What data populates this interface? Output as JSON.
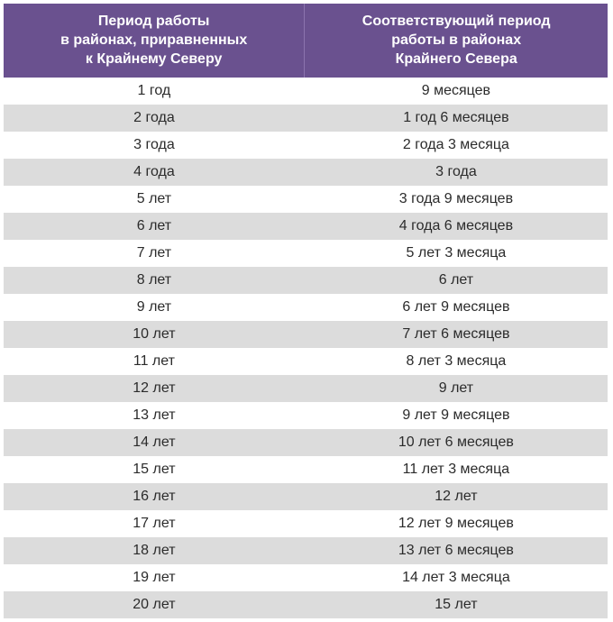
{
  "table": {
    "type": "table",
    "header_bg": "#6a518f",
    "header_text_color": "#ffffff",
    "header_fontsize": 16,
    "header_fontweight": "bold",
    "row_even_bg": "#dcdcdc",
    "row_odd_bg": "#ffffff",
    "cell_text_color": "#2b2b2b",
    "cell_fontsize": 16,
    "columns": [
      "Период работы\nв районах, приравненных\nк Крайнему Северу",
      "Соответствующий период\nработы в районах\nКрайнего Севера"
    ],
    "rows": [
      [
        "1 год",
        "9 месяцев"
      ],
      [
        "2 года",
        "1 год 6 месяцев"
      ],
      [
        "3 года",
        "2 года 3 месяца"
      ],
      [
        "4 года",
        "3 года"
      ],
      [
        "5 лет",
        "3 года 9 месяцев"
      ],
      [
        "6 лет",
        "4 года 6 месяцев"
      ],
      [
        "7 лет",
        "5 лет 3 месяца"
      ],
      [
        "8 лет",
        "6 лет"
      ],
      [
        "9 лет",
        "6 лет 9 месяцев"
      ],
      [
        "10 лет",
        "7 лет 6 месяцев"
      ],
      [
        "11 лет",
        "8 лет 3 месяца"
      ],
      [
        "12 лет",
        "9 лет"
      ],
      [
        "13 лет",
        "9 лет 9 месяцев"
      ],
      [
        "14 лет",
        "10 лет 6 месяцев"
      ],
      [
        "15 лет",
        "11 лет 3 месяца"
      ],
      [
        "16 лет",
        "12 лет"
      ],
      [
        "17 лет",
        "12 лет 9 месяцев"
      ],
      [
        "18 лет",
        "13 лет 6 месяцев"
      ],
      [
        "19 лет",
        "14 лет 3 месяца"
      ],
      [
        "20 лет",
        "15 лет"
      ]
    ]
  }
}
